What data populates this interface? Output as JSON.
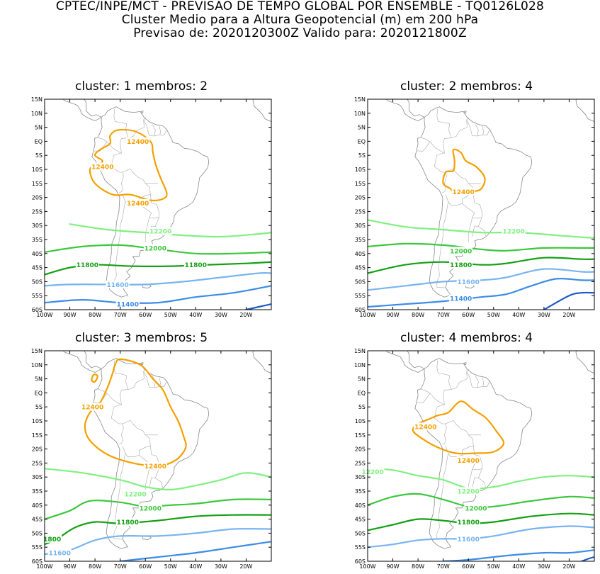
{
  "header": {
    "line1": "CPTEC/INPE/MCT - PREVISAO DE TEMPO GLOBAL POR ENSEMBLE - TQ0126L028",
    "line2": "Cluster Medio para a Altura Geopotencial (m) em 200 hPa",
    "line3": "Previsao de: 2020120300Z    Valido para: 2020121800Z"
  },
  "axes": {
    "lat_labels": [
      "15N",
      "10N",
      "5N",
      "EQ",
      "5S",
      "10S",
      "15S",
      "20S",
      "25S",
      "30S",
      "35S",
      "40S",
      "45S",
      "50S",
      "55S",
      "60S"
    ],
    "lon_labels": [
      "100W",
      "90W",
      "80W",
      "70W",
      "60W",
      "50W",
      "40W",
      "30W",
      "20W"
    ]
  },
  "colors": {
    "c12400": "#f5a000",
    "c12200": "#80f080",
    "c12000": "#3cc83c",
    "c11800": "#14a014",
    "c11600": "#78b4f0",
    "c11400": "#3c8ce6",
    "c11200": "#1e5ac8",
    "land": "#888888"
  },
  "panels": [
    {
      "title": "cluster: 1   membros: 2",
      "labels": [
        {
          "text": "12400",
          "lon": -63,
          "lat": 0
        },
        {
          "text": "12400",
          "lon": -77,
          "lat": -9
        },
        {
          "text": "12400",
          "lon": -63,
          "lat": -22
        },
        {
          "text": "12200",
          "lon": -54,
          "lat": -32
        },
        {
          "text": "12000",
          "lon": -56,
          "lat": -38
        },
        {
          "text": "11800",
          "lon": -83,
          "lat": -44
        },
        {
          "text": "11800",
          "lon": -40,
          "lat": -44
        },
        {
          "text": "11600",
          "lon": -71,
          "lat": -51
        },
        {
          "text": "11400",
          "lon": -67,
          "lat": -58
        }
      ]
    },
    {
      "title": "cluster: 2   membros: 4",
      "labels": [
        {
          "text": "12400",
          "lon": -62,
          "lat": -18
        },
        {
          "text": "12200",
          "lon": -42,
          "lat": -32
        },
        {
          "text": "12000",
          "lon": -63,
          "lat": -39
        },
        {
          "text": "11800",
          "lon": -63,
          "lat": -44
        },
        {
          "text": "11600",
          "lon": -60,
          "lat": -50
        },
        {
          "text": "11400",
          "lon": -63,
          "lat": -56
        }
      ]
    },
    {
      "title": "cluster: 3   membros: 5",
      "labels": [
        {
          "text": "12400",
          "lon": -81,
          "lat": -5
        },
        {
          "text": "12400",
          "lon": -56,
          "lat": -26
        },
        {
          "text": "12200",
          "lon": -64,
          "lat": -36
        },
        {
          "text": "12000",
          "lon": -58,
          "lat": -41
        },
        {
          "text": "11800",
          "lon": -67,
          "lat": -46
        },
        {
          "text": "1800",
          "lon": -97,
          "lat": -52
        },
        {
          "text": "11600",
          "lon": -94,
          "lat": -57
        }
      ]
    },
    {
      "title": "cluster: 4   membros: 4",
      "labels": [
        {
          "text": "12200",
          "lon": -98,
          "lat": -28
        },
        {
          "text": "12400",
          "lon": -77,
          "lat": -12
        },
        {
          "text": "12400",
          "lon": -60,
          "lat": -24
        },
        {
          "text": "12200",
          "lon": -60,
          "lat": -35
        },
        {
          "text": "12000",
          "lon": -57,
          "lat": -41
        },
        {
          "text": "11800",
          "lon": -60,
          "lat": -46
        },
        {
          "text": "11600",
          "lon": -60,
          "lat": -52
        }
      ]
    }
  ]
}
